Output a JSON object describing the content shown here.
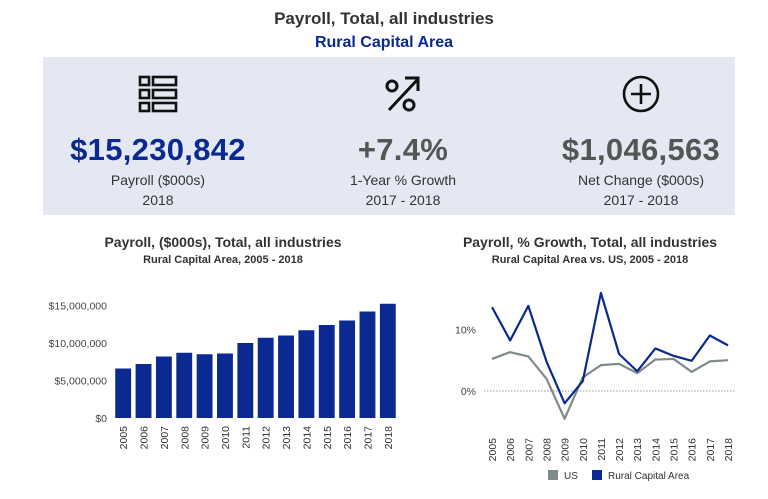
{
  "header": {
    "title": "Payroll, Total, all industries",
    "subtitle": "Rural Capital Area"
  },
  "kpis": [
    {
      "icon": "list-icon",
      "value": "$15,230,842",
      "label": "Payroll ($000s)",
      "period": "2018",
      "color": "#0b2a91"
    },
    {
      "icon": "percent-arrow-icon",
      "value": "+7.4%",
      "label": "1-Year % Growth",
      "period": "2017 - 2018",
      "color": "#555555"
    },
    {
      "icon": "plus-circle-icon",
      "value": "$1,046,563",
      "label": "Net Change ($000s)",
      "period": "2017 - 2018",
      "color": "#555555"
    }
  ],
  "colors": {
    "accent": "#0b2a91",
    "us": "#7f8a8a",
    "band": "#e3e8f2"
  },
  "chart_data": [
    {
      "type": "bar",
      "title": "Payroll, ($000s), Total, all industries",
      "subtitle": "Rural Capital Area, 2005 - 2018",
      "categories": [
        "2005",
        "2006",
        "2007",
        "2008",
        "2009",
        "2010",
        "2011",
        "2012",
        "2013",
        "2014",
        "2015",
        "2016",
        "2017",
        "2018"
      ],
      "values": [
        6600000,
        7200000,
        8200000,
        8700000,
        8500000,
        8600000,
        10000000,
        10700000,
        11000000,
        11700000,
        12400000,
        13000000,
        14200000,
        15230842
      ],
      "ylim": [
        0,
        16000000
      ],
      "yticks": [
        0,
        5000000,
        10000000,
        15000000
      ],
      "ytick_labels": [
        "$0",
        "$5,000,000",
        "$10,000,000",
        "$15,000,000"
      ],
      "xlabel": "",
      "ylabel": ""
    },
    {
      "type": "line",
      "title": "Payroll, % Growth, Total, all industries",
      "subtitle": "Rural Capital Area vs. US, 2005 - 2018",
      "x": [
        "2005",
        "2006",
        "2007",
        "2008",
        "2009",
        "2010",
        "2011",
        "2012",
        "2013",
        "2014",
        "2015",
        "2016",
        "2017",
        "2018"
      ],
      "series": [
        {
          "name": "US",
          "color": "#7f8a8a",
          "values": [
            5.2,
            6.3,
            5.6,
            2.0,
            -4.5,
            2.2,
            4.2,
            4.4,
            2.9,
            5.1,
            5.2,
            3.1,
            4.8,
            5.0
          ]
        },
        {
          "name": "Rural Capital Area",
          "color": "#0b2a91",
          "values": [
            13.6,
            8.2,
            13.8,
            4.8,
            -2.0,
            1.6,
            15.9,
            6.0,
            3.2,
            6.9,
            5.7,
            4.9,
            9.0,
            7.4
          ]
        }
      ],
      "ylim": [
        -6,
        18
      ],
      "yticks": [
        0,
        10
      ],
      "ytick_labels": [
        "0%",
        "10%"
      ],
      "legend": [
        {
          "label": "US"
        },
        {
          "label": "Rural Capital Area"
        }
      ],
      "legend_position": "bottom"
    }
  ]
}
